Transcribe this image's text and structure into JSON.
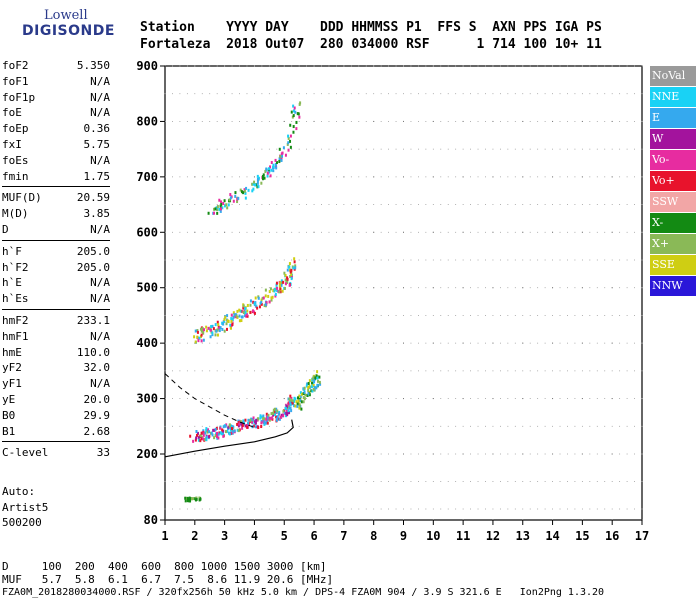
{
  "logo": {
    "line1": "Lowell",
    "line2": "DIGISONDE"
  },
  "header": {
    "row1": "Station    YYYY DAY    DDD HHMMSS P1  FFS S  AXN PPS IGA PS",
    "row2": "Fortaleza  2018 Out07  280 034000 RSF      1 714 100 10+ 11"
  },
  "params": {
    "group1": [
      {
        "name": "foF2",
        "value": "5.350"
      },
      {
        "name": "foF1",
        "value": "N/A"
      },
      {
        "name": "foF1p",
        "value": "N/A"
      },
      {
        "name": "foE",
        "value": "N/A"
      },
      {
        "name": "foEp",
        "value": "0.36"
      },
      {
        "name": "fxI",
        "value": "5.75"
      },
      {
        "name": "foEs",
        "value": "N/A"
      },
      {
        "name": "fmin",
        "value": "1.75"
      }
    ],
    "group2": [
      {
        "name": "MUF(D)",
        "value": "20.59"
      },
      {
        "name": "M(D)",
        "value": "3.85"
      },
      {
        "name": "D",
        "value": "N/A"
      }
    ],
    "group3": [
      {
        "name": "h`F",
        "value": "205.0"
      },
      {
        "name": "h`F2",
        "value": "205.0"
      },
      {
        "name": "h`E",
        "value": "N/A"
      },
      {
        "name": "h`Es",
        "value": "N/A"
      }
    ],
    "group4": [
      {
        "name": "hmF2",
        "value": "233.1"
      },
      {
        "name": "hmF1",
        "value": "N/A"
      },
      {
        "name": "hmE",
        "value": "110.0"
      },
      {
        "name": "yF2",
        "value": "32.0"
      },
      {
        "name": "yF1",
        "value": "N/A"
      },
      {
        "name": "yE",
        "value": "20.0"
      },
      {
        "name": "B0",
        "value": "29.9"
      },
      {
        "name": "B1",
        "value": "2.68"
      }
    ],
    "group5": [
      {
        "name": "C-level",
        "value": "33"
      }
    ]
  },
  "auto": {
    "line1": "Auto:",
    "line2": "Artist5",
    "line3": "500200"
  },
  "footer": {
    "d_row": "D     100  200  400  600  800 1000 1500 3000 [km]",
    "muf_row": "MUF   5.7  5.8  6.1  6.7  7.5  8.6 11.9 20.6 [MHz]",
    "info": "FZA0M_2018280034000.RSF / 320fx256h 50 kHz 5.0 km / DPS-4 FZA0M 904 / 3.9 S 321.6 E   Ion2Png 1.3.20"
  },
  "chart_data": {
    "type": "scatter",
    "x_ticks": [
      1,
      2,
      3,
      4,
      5,
      6,
      7,
      8,
      9,
      10,
      11,
      12,
      13,
      14,
      15,
      16,
      17
    ],
    "y_ticks": [
      80,
      200,
      300,
      400,
      500,
      600,
      700,
      800,
      900
    ],
    "xlim": [
      1,
      17
    ],
    "ylim": [
      80,
      900
    ],
    "grid": true,
    "legend_position": "right",
    "legend": [
      {
        "name": "NoVal",
        "color": "#9a9a9a"
      },
      {
        "name": "NNE",
        "color": "#19d2f5"
      },
      {
        "name": "E",
        "color": "#35a9ee"
      },
      {
        "name": "W",
        "color": "#a3139d"
      },
      {
        "name": "Vo-",
        "color": "#e72ca0"
      },
      {
        "name": "Vo+",
        "color": "#e8132c"
      },
      {
        "name": "SSW",
        "color": "#f2a6a6"
      },
      {
        "name": "X-",
        "color": "#138a13"
      },
      {
        "name": "X+",
        "color": "#8ab957"
      },
      {
        "name": "SSE",
        "color": "#cfce13"
      },
      {
        "name": "NNW",
        "color": "#2a17d9"
      }
    ],
    "traces": [
      {
        "name": "o-trace F2",
        "points": [
          [
            1.9,
            232
          ],
          [
            2.3,
            238
          ],
          [
            2.8,
            242
          ],
          [
            3.2,
            248
          ],
          [
            3.6,
            255
          ],
          [
            4.0,
            258
          ],
          [
            4.4,
            266
          ],
          [
            4.8,
            275
          ],
          [
            5.1,
            285
          ],
          [
            5.3,
            300
          ]
        ]
      },
      {
        "name": "o-trace F2 second hop",
        "points": [
          [
            2.0,
            415
          ],
          [
            2.4,
            422
          ],
          [
            2.8,
            432
          ],
          [
            3.2,
            445
          ],
          [
            3.6,
            458
          ],
          [
            4.0,
            470
          ],
          [
            4.4,
            485
          ],
          [
            4.8,
            500
          ],
          [
            5.1,
            520
          ],
          [
            5.3,
            545
          ]
        ]
      },
      {
        "name": "x-trace",
        "points": [
          [
            5.4,
            290
          ],
          [
            5.6,
            305
          ],
          [
            5.8,
            320
          ],
          [
            6.0,
            330
          ],
          [
            6.1,
            340
          ]
        ]
      },
      {
        "name": "third hop",
        "points": [
          [
            2.5,
            640
          ],
          [
            3.0,
            655
          ],
          [
            3.5,
            670
          ],
          [
            4.0,
            690
          ],
          [
            4.4,
            710
          ],
          [
            4.8,
            735
          ],
          [
            5.2,
            775
          ],
          [
            5.4,
            830
          ]
        ]
      },
      {
        "name": "low echo",
        "points": [
          [
            1.6,
            120
          ],
          [
            1.8,
            120
          ],
          [
            2.0,
            120
          ],
          [
            2.2,
            120
          ]
        ]
      }
    ],
    "profile": [
      [
        1.0,
        195
      ],
      [
        2.0,
        205
      ],
      [
        3.0,
        214
      ],
      [
        4.0,
        222
      ],
      [
        4.7,
        231
      ],
      [
        5.1,
        238
      ],
      [
        5.3,
        248
      ],
      [
        5.25,
        262
      ]
    ],
    "profile_dashed": [
      [
        1.0,
        345
      ],
      [
        1.5,
        320
      ],
      [
        2.0,
        300
      ],
      [
        2.5,
        285
      ],
      [
        3.0,
        270
      ],
      [
        3.5,
        258
      ],
      [
        4.0,
        248
      ]
    ]
  }
}
